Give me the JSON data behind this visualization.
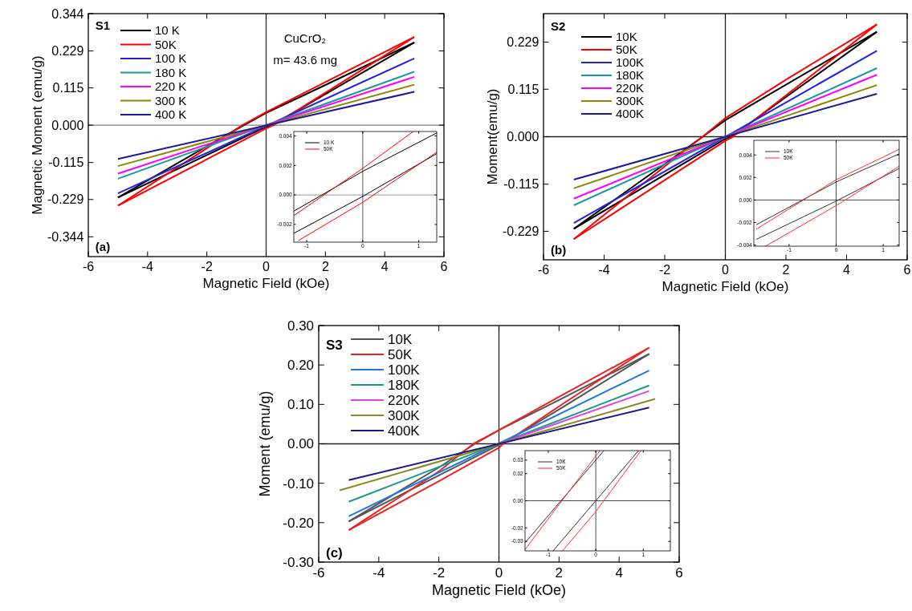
{
  "chart_data": [
    {
      "type": "line",
      "xlabel": "Magnetic Field (kOe)",
      "ylabel": "Magnetic Moment (emu/g)",
      "xlim": [
        -6,
        6
      ],
      "ylim": [
        -0.405,
        0.344
      ],
      "xticks": [
        -6,
        -4,
        -2,
        0,
        2,
        4,
        6
      ],
      "yticks": [
        -0.344,
        -0.229,
        -0.115,
        {
          "value": 0,
          "label": "0.000"
        },
        0.115,
        0.229,
        0.344
      ],
      "legend": "top left",
      "annotations": [
        "S1",
        "(a)",
        "CuCrO₂",
        "m= 43.6 mg"
      ],
      "ref_lines": [
        {
          "axis": "y",
          "value": 0,
          "color": "#808080"
        },
        {
          "axis": "x",
          "value": 0,
          "color": "#303030"
        }
      ],
      "series": [
        {
          "name": "10 K",
          "color": "#000000",
          "x": [
            -5,
            -2,
            -0.75,
            0,
            2,
            5
          ],
          "values": [
            -0.223,
            -0.065,
            0,
            0.038,
            0.124,
            0.255
          ]
        },
        {
          "color": "#000000",
          "x": [
            -5,
            -2,
            0,
            0.2,
            2,
            5
          ],
          "values": [
            -0.223,
            -0.092,
            -0.005,
            0,
            0.096,
            0.255
          ]
        },
        {
          "name": "50K",
          "color": "#ff0000",
          "x": [
            -5,
            -2,
            -0.8,
            0,
            2,
            5
          ],
          "values": [
            -0.248,
            -0.071,
            0,
            0.04,
            0.133,
            0.272
          ]
        },
        {
          "color": "#ff0000",
          "x": [
            -5,
            -2,
            0,
            0.25,
            2,
            5
          ],
          "values": [
            -0.248,
            -0.105,
            -0.01,
            0,
            0.1,
            0.272
          ]
        },
        {
          "name": "100 K",
          "color": "#2222dd",
          "x": [
            -5,
            5
          ],
          "values": [
            -0.21,
            0.206
          ]
        },
        {
          "name": "180 K",
          "color": "#1a9a9a",
          "x": [
            -5,
            5
          ],
          "values": [
            -0.165,
            0.165
          ]
        },
        {
          "name": "220 K",
          "color": "#ff00ff",
          "x": [
            -5,
            5
          ],
          "values": [
            -0.149,
            0.149
          ]
        },
        {
          "name": "300 K",
          "color": "#8a8a00",
          "x": [
            -5,
            5
          ],
          "values": [
            -0.126,
            0.125
          ]
        },
        {
          "name": "400 K",
          "color": "#1a1a9a",
          "x": [
            -5,
            5
          ],
          "values": [
            -0.104,
            0.103
          ]
        }
      ]
    },
    {
      "type": "line",
      "xlim": [
        -1.23,
        1.32
      ],
      "ylim": [
        -0.0032,
        0.0043
      ],
      "xticks": [
        -1,
        0,
        1
      ],
      "yticks": [
        -0.002,
        {
          "value": 0,
          "label": "0.000"
        },
        0.002,
        0.004
      ],
      "legend": "top left",
      "ref_lines": [
        {
          "axis": "y",
          "value": 0,
          "color": "#808080"
        },
        {
          "axis": "x",
          "value": 0,
          "color": "#303030"
        }
      ],
      "series": [
        {
          "name": "10 K",
          "color": "#000000",
          "x": [
            -1.23,
            0,
            1.32
          ],
          "values": [
            -0.0011,
            0.0016,
            0.0042
          ]
        },
        {
          "color": "#000000",
          "x": [
            -1.23,
            0,
            1.32
          ],
          "values": [
            -0.0026,
            -0.0001,
            0.0028
          ]
        },
        {
          "name": "50K",
          "color": "#ff0000",
          "x": [
            -1.23,
            0,
            0.9
          ],
          "values": [
            -0.0014,
            0.0018,
            0.0043
          ]
        },
        {
          "color": "#ff0000",
          "x": [
            -1.15,
            0,
            1.32
          ],
          "values": [
            -0.0031,
            -0.0005,
            0.0029
          ]
        }
      ]
    },
    {
      "type": "line",
      "xlabel": "Magnetic Field (kOe)",
      "ylabel": "Moment(emu/g)",
      "xlim": [
        -6,
        6
      ],
      "ylim": [
        -0.298,
        0.298
      ],
      "xticks": [
        -6,
        -4,
        -2,
        0,
        2,
        4,
        6
      ],
      "yticks": [
        -0.229,
        -0.115,
        {
          "value": 0,
          "label": "0.000"
        },
        0.115,
        0.229
      ],
      "legend": "top left",
      "annotations": [
        "S2",
        "(b)"
      ],
      "ref_lines": [
        {
          "axis": "y",
          "value": 0,
          "color": "#202020"
        },
        {
          "axis": "x",
          "value": 0,
          "color": "#202020"
        }
      ],
      "series": [
        {
          "name": "10K",
          "color": "#000000",
          "x": [
            -5,
            -2,
            -0.75,
            0,
            2,
            5
          ],
          "values": [
            -0.223,
            -0.066,
            0,
            0.04,
            0.126,
            0.254
          ]
        },
        {
          "color": "#000000",
          "x": [
            -5,
            -2,
            0,
            0.2,
            2,
            5
          ],
          "values": [
            -0.223,
            -0.092,
            -0.005,
            0,
            0.096,
            0.254
          ]
        },
        {
          "name": "50K",
          "color": "#ff0000",
          "x": [
            -5,
            -2,
            -0.75,
            0,
            2,
            5
          ],
          "values": [
            -0.248,
            -0.072,
            0,
            0.045,
            0.138,
            0.272
          ]
        },
        {
          "color": "#ff0000",
          "x": [
            -5,
            -2,
            0,
            0.25,
            2,
            5
          ],
          "values": [
            -0.248,
            -0.105,
            -0.01,
            0,
            0.1,
            0.272
          ]
        },
        {
          "name": "100K",
          "color": "#2222dd",
          "x": [
            -5,
            5
          ],
          "values": [
            -0.209,
            0.208
          ]
        },
        {
          "name": "180K",
          "color": "#1a9a9a",
          "x": [
            -5,
            5
          ],
          "values": [
            -0.166,
            0.166
          ]
        },
        {
          "name": "220K",
          "color": "#ff00ff",
          "x": [
            -5,
            5
          ],
          "values": [
            -0.15,
            0.15
          ]
        },
        {
          "name": "300K",
          "color": "#8a8a00",
          "x": [
            -5,
            5
          ],
          "values": [
            -0.125,
            0.125
          ]
        },
        {
          "name": "400K",
          "color": "#1a1a9a",
          "x": [
            -5,
            5
          ],
          "values": [
            -0.104,
            0.104
          ]
        }
      ]
    },
    {
      "type": "line",
      "xlim": [
        -1.75,
        1.34
      ],
      "ylim": [
        -0.0041,
        0.0053
      ],
      "xticks": [
        -1,
        0,
        1
      ],
      "yticks": [
        -0.004,
        -0.002,
        {
          "value": 0,
          "label": "0.000"
        },
        0.002,
        0.004
      ],
      "legend": "top left",
      "ref_lines": [
        {
          "axis": "y",
          "value": 0,
          "color": "#202020"
        },
        {
          "axis": "x",
          "value": 0,
          "color": "#202020"
        }
      ],
      "series": [
        {
          "name": "10K",
          "color": "#333333",
          "x": [
            -1.7,
            0,
            1.34
          ],
          "values": [
            -0.0022,
            0.0016,
            0.0041
          ]
        },
        {
          "color": "#333333",
          "x": [
            -1.7,
            0,
            1.34
          ],
          "values": [
            -0.0035,
            -0.0001,
            0.0028
          ]
        },
        {
          "name": "50K",
          "color": "#ff3030",
          "x": [
            -1.7,
            0,
            1.34
          ],
          "values": [
            -0.0026,
            0.0018,
            0.0045
          ]
        },
        {
          "color": "#ff3030",
          "x": [
            -1.5,
            0,
            1.34
          ],
          "values": [
            -0.0041,
            -0.0005,
            0.003
          ]
        }
      ]
    },
    {
      "type": "line",
      "xlabel": "Magnetic Field (kOe)",
      "ylabel": "Moment (emu/g)",
      "xlim": [
        -6,
        6
      ],
      "ylim": [
        -0.3,
        0.3
      ],
      "xticks": [
        -6,
        -4,
        -2,
        0,
        2,
        4,
        6
      ],
      "yticks": [
        {
          "value": -0.3,
          "label": "-0.30"
        },
        {
          "value": -0.2,
          "label": "-0.20"
        },
        {
          "value": -0.1,
          "label": "-0.10"
        },
        {
          "value": 0,
          "label": "0.00"
        },
        {
          "value": 0.1,
          "label": "0.10"
        },
        {
          "value": 0.2,
          "label": "0.20"
        },
        {
          "value": 0.3,
          "label": "0.30"
        }
      ],
      "legend": "top left",
      "annotations": [
        "S3",
        "(c)"
      ],
      "ref_lines": [
        {
          "axis": "y",
          "value": 0,
          "color": "#202020"
        },
        {
          "axis": "x",
          "value": 0,
          "color": "#202020"
        }
      ],
      "series": [
        {
          "name": "10K",
          "color": "#555555",
          "x": [
            -5,
            -2,
            -0.8,
            0,
            2,
            5
          ],
          "values": [
            -0.197,
            -0.06,
            0,
            0.035,
            0.111,
            0.228
          ]
        },
        {
          "color": "#555555",
          "x": [
            -5,
            -2,
            0,
            0.1,
            2,
            5
          ],
          "values": [
            -0.197,
            -0.08,
            -0.003,
            0,
            0.087,
            0.228
          ]
        },
        {
          "name": "50K",
          "color": "#ee2222",
          "x": [
            -5,
            -2,
            -0.85,
            0,
            2,
            5
          ],
          "values": [
            -0.219,
            -0.07,
            0,
            0.035,
            0.119,
            0.244
          ]
        },
        {
          "color": "#ee2222",
          "x": [
            -5,
            -2,
            0,
            0.15,
            2,
            5
          ],
          "values": [
            -0.219,
            -0.095,
            -0.01,
            0,
            0.095,
            0.244
          ]
        },
        {
          "name": "100K",
          "color": "#2277dd",
          "x": [
            -5,
            5
          ],
          "values": [
            -0.184,
            0.186
          ]
        },
        {
          "name": "180K",
          "color": "#1a9a8a",
          "x": [
            -5,
            5
          ],
          "values": [
            -0.147,
            0.148
          ]
        },
        {
          "name": "220K",
          "color": "#dd44dd",
          "x": [
            0,
            5
          ],
          "values": [
            0,
            0.134
          ]
        },
        {
          "name": "300K",
          "color": "#8a8a20",
          "x": [
            -5.3,
            5.2
          ],
          "values": [
            -0.118,
            0.114
          ]
        },
        {
          "name": "400K",
          "color": "#1a1a80",
          "x": [
            -5,
            5
          ],
          "values": [
            -0.092,
            0.092
          ]
        }
      ]
    },
    {
      "type": "line",
      "xlim": [
        -1.49,
        1.57
      ],
      "ylim": [
        -0.037,
        0.037
      ],
      "xticks": [
        -1,
        0,
        1
      ],
      "yticks": [
        -0.03,
        -0.02,
        {
          "value": 0,
          "label": "0.00"
        },
        0.02,
        0.03
      ],
      "legend": "top left",
      "ref_lines": [
        {
          "axis": "y",
          "value": 0,
          "color": "#202020"
        },
        {
          "axis": "x",
          "value": 0,
          "color": "#202020"
        }
      ],
      "series": [
        {
          "name": "10K",
          "color": "#333333",
          "x": [
            -1.49,
            0,
            0.17
          ],
          "values": [
            -0.031,
            0.03,
            0.037
          ]
        },
        {
          "color": "#333333",
          "x": [
            -0.9,
            0,
            0.9
          ],
          "values": [
            -0.037,
            0,
            0.037
          ]
        },
        {
          "name": "50K",
          "color": "#ff3030",
          "x": [
            -1.49,
            0,
            0.09
          ],
          "values": [
            -0.036,
            0.033,
            0.037
          ]
        },
        {
          "color": "#ff3030",
          "x": [
            -0.7,
            0,
            0.95
          ],
          "values": [
            -0.037,
            -0.008,
            0.037
          ]
        }
      ]
    }
  ]
}
